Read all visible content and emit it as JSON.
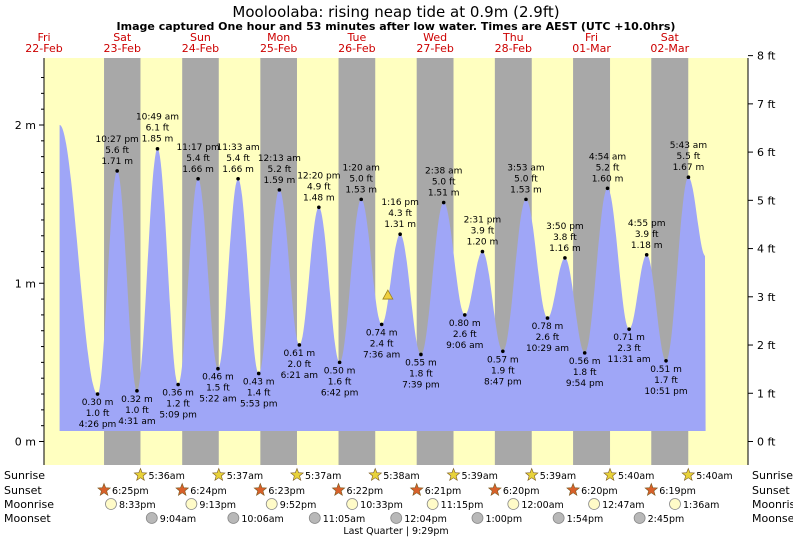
{
  "chart_data": {
    "type": "area",
    "title": "Mooloolaba: rising  neap tide at 0.9m (2.9ft)",
    "subtitle": "Image captured One hour and 53 minutes after low water. Times are AEST (UTC +10.0hrs)",
    "days": [
      {
        "dow": "Fri",
        "date": "22-Feb"
      },
      {
        "dow": "Sat",
        "date": "23-Feb"
      },
      {
        "dow": "Sun",
        "date": "24-Feb"
      },
      {
        "dow": "Mon",
        "date": "25-Feb"
      },
      {
        "dow": "Tue",
        "date": "26-Feb"
      },
      {
        "dow": "Wed",
        "date": "27-Feb"
      },
      {
        "dow": "Thu",
        "date": "28-Feb"
      },
      {
        "dow": "Fri",
        "date": "01-Mar"
      },
      {
        "dow": "Sat",
        "date": "02-Mar"
      }
    ],
    "y_left_ticks": [
      "0 m",
      "1 m",
      "2 m"
    ],
    "y_right_ticks": [
      "0 ft",
      "1 ft",
      "2 ft",
      "3 ft",
      "4 ft",
      "5 ft",
      "6 ft",
      "7 ft",
      "8 ft"
    ],
    "ylim_m": [
      0,
      2.44
    ],
    "x_start": "22-Feb 00:00",
    "x_range_hours": [
      0,
      216
    ],
    "daylight": [
      {
        "rise_h": -18.4,
        "set_h": 18.42
      },
      {
        "rise_h": 29.6,
        "set_h": 42.4
      },
      {
        "rise_h": 53.62,
        "set_h": 66.38
      },
      {
        "rise_h": 77.62,
        "set_h": 90.37
      },
      {
        "rise_h": 101.63,
        "set_h": 114.35
      },
      {
        "rise_h": 125.65,
        "set_h": 138.33
      },
      {
        "rise_h": 149.65,
        "set_h": 162.33
      },
      {
        "rise_h": 173.67,
        "set_h": 186.32
      },
      {
        "rise_h": 197.67,
        "set_h": 234
      }
    ],
    "tides": [
      {
        "h": 4.8,
        "m": 2.0
      },
      {
        "h": 16.43,
        "m": 0.3,
        "type": "low",
        "time": "4:26 pm",
        "ft": "1.0 ft",
        "mt": "0.30 m"
      },
      {
        "h": 22.45,
        "m": 1.71,
        "type": "high",
        "time": "10:27 pm",
        "ft": "5.6 ft",
        "mt": "1.71 m"
      },
      {
        "h": 28.52,
        "m": 0.32,
        "type": "low",
        "time": "4:31 am",
        "ft": "1.0 ft",
        "mt": "0.32 m"
      },
      {
        "h": 34.82,
        "m": 1.85,
        "type": "high",
        "time": "10:49 am",
        "ft": "6.1 ft",
        "mt": "1.85 m"
      },
      {
        "h": 41.15,
        "m": 0.36,
        "type": "low",
        "time": "5:09 pm",
        "ft": "1.2 ft",
        "mt": "0.36 m"
      },
      {
        "h": 47.28,
        "m": 1.66,
        "type": "high",
        "time": "11:17 pm",
        "ft": "5.4 ft",
        "mt": "1.66 m"
      },
      {
        "h": 53.37,
        "m": 0.46,
        "type": "low",
        "time": "5:22 am",
        "ft": "1.5 ft",
        "mt": "0.46 m"
      },
      {
        "h": 59.55,
        "m": 1.66,
        "type": "high",
        "time": "11:33 am",
        "ft": "5.4 ft",
        "mt": "1.66 m"
      },
      {
        "h": 65.88,
        "m": 0.43,
        "type": "low",
        "time": "5:53 pm",
        "ft": "1.4 ft",
        "mt": "0.43 m"
      },
      {
        "h": 72.22,
        "m": 1.59,
        "type": "high",
        "time": "12:13 am",
        "ft": "5.2 ft",
        "mt": "1.59 m"
      },
      {
        "h": 78.35,
        "m": 0.61,
        "type": "low",
        "time": "6:21 am",
        "ft": "2.0 ft",
        "mt": "0.61 m"
      },
      {
        "h": 84.33,
        "m": 1.48,
        "type": "high",
        "time": "12:20 pm",
        "ft": "4.9 ft",
        "mt": "1.48 m"
      },
      {
        "h": 90.7,
        "m": 0.5,
        "type": "low",
        "time": "6:42 pm",
        "ft": "1.6 ft",
        "mt": "0.50 m"
      },
      {
        "h": 97.33,
        "m": 1.53,
        "type": "high",
        "time": "1:20 am",
        "ft": "5.0 ft",
        "mt": "1.53 m"
      },
      {
        "h": 103.6,
        "m": 0.74,
        "type": "low",
        "time": "7:36 am",
        "ft": "2.4 ft",
        "mt": "0.74 m"
      },
      {
        "h": 109.27,
        "m": 1.31,
        "type": "high",
        "time": "1:16 pm",
        "ft": "4.3 ft",
        "mt": "1.31 m"
      },
      {
        "h": 115.65,
        "m": 0.55,
        "type": "low",
        "time": "7:39 pm",
        "ft": "1.8 ft",
        "mt": "0.55 m"
      },
      {
        "h": 122.63,
        "m": 1.51,
        "type": "high",
        "time": "2:38 am",
        "ft": "5.0 ft",
        "mt": "1.51 m"
      },
      {
        "h": 129.1,
        "m": 0.8,
        "type": "low",
        "time": "9:06 am",
        "ft": "2.6 ft",
        "mt": "0.80 m"
      },
      {
        "h": 134.52,
        "m": 1.2,
        "type": "high",
        "time": "2:31 pm",
        "ft": "3.9 ft",
        "mt": "1.20 m"
      },
      {
        "h": 140.78,
        "m": 0.57,
        "type": "low",
        "time": "8:47 pm",
        "ft": "1.9 ft",
        "mt": "0.57 m"
      },
      {
        "h": 147.88,
        "m": 1.53,
        "type": "high",
        "time": "3:53 am",
        "ft": "5.0 ft",
        "mt": "1.53 m"
      },
      {
        "h": 154.48,
        "m": 0.78,
        "type": "low",
        "time": "10:29 am",
        "ft": "2.6 ft",
        "mt": "0.78 m"
      },
      {
        "h": 159.83,
        "m": 1.16,
        "type": "high",
        "time": "3:50 pm",
        "ft": "3.8 ft",
        "mt": "1.16 m"
      },
      {
        "h": 165.9,
        "m": 0.56,
        "type": "low",
        "time": "9:54 pm",
        "ft": "1.8 ft",
        "mt": "0.56 m"
      },
      {
        "h": 172.9,
        "m": 1.6,
        "type": "high",
        "time": "4:54 am",
        "ft": "5.2 ft",
        "mt": "1.60 m"
      },
      {
        "h": 179.52,
        "m": 0.71,
        "type": "low",
        "time": "11:31 am",
        "ft": "2.3 ft",
        "mt": "0.71 m"
      },
      {
        "h": 184.92,
        "m": 1.18,
        "type": "high",
        "time": "4:55 pm",
        "ft": "3.9 ft",
        "mt": "1.18 m"
      },
      {
        "h": 190.85,
        "m": 0.51,
        "type": "low",
        "time": "10:51 pm",
        "ft": "1.7 ft",
        "mt": "0.51 m"
      },
      {
        "h": 197.72,
        "m": 1.67,
        "type": "high",
        "time": "5:43 am",
        "ft": "5.5 ft",
        "mt": "1.67 m"
      },
      {
        "h": 203.0,
        "m": 1.17
      }
    ],
    "current": {
      "h": 105.5,
      "m": 0.9
    },
    "rows": [
      {
        "label": "Sunrise",
        "kind": "sunrise",
        "events": [
          {
            "h": 29.6,
            "text": "5:36am"
          },
          {
            "h": 53.62,
            "text": "5:37am"
          },
          {
            "h": 77.62,
            "text": "5:37am"
          },
          {
            "h": 101.63,
            "text": "5:38am"
          },
          {
            "h": 125.65,
            "text": "5:39am"
          },
          {
            "h": 149.65,
            "text": "5:39am"
          },
          {
            "h": 173.67,
            "text": "5:40am"
          },
          {
            "h": 197.67,
            "text": "5:40am"
          }
        ]
      },
      {
        "label": "Sunset",
        "kind": "sunset",
        "events": [
          {
            "h": 18.42,
            "text": "6:25pm"
          },
          {
            "h": 42.4,
            "text": "6:24pm"
          },
          {
            "h": 66.38,
            "text": "6:23pm"
          },
          {
            "h": 90.37,
            "text": "6:22pm"
          },
          {
            "h": 114.35,
            "text": "6:21pm"
          },
          {
            "h": 138.33,
            "text": "6:20pm"
          },
          {
            "h": 162.33,
            "text": "6:20pm"
          },
          {
            "h": 186.32,
            "text": "6:19pm"
          }
        ]
      },
      {
        "label": "Moonrise",
        "kind": "moonrise",
        "events": [
          {
            "h": 20.55,
            "text": "8:33pm"
          },
          {
            "h": 45.22,
            "text": "9:13pm"
          },
          {
            "h": 69.87,
            "text": "9:52pm"
          },
          {
            "h": 94.55,
            "text": "10:33pm"
          },
          {
            "h": 119.25,
            "text": "11:15pm"
          },
          {
            "h": 144.0,
            "text": "12:00am"
          },
          {
            "h": 168.78,
            "text": "12:47am"
          },
          {
            "h": 193.6,
            "text": "1:36am"
          }
        ]
      },
      {
        "label": "Moonset",
        "kind": "moonset",
        "events": [
          {
            "h": 33.07,
            "text": "9:04am"
          },
          {
            "h": 58.1,
            "text": "10:06am"
          },
          {
            "h": 83.08,
            "text": "11:05am"
          },
          {
            "h": 108.07,
            "text": "12:04pm"
          },
          {
            "h": 133.0,
            "text": "1:00pm"
          },
          {
            "h": 157.9,
            "text": "1:54pm"
          },
          {
            "h": 182.75,
            "text": "2:45pm"
          }
        ]
      }
    ],
    "moon_phase": "Last Quarter | 9:29pm",
    "colors": {
      "day": "#ffffc0",
      "night": "#a8a8a8",
      "water": "#9fa6f7",
      "day_label": "#cc0000",
      "sunrise": "#e8d23a",
      "sunset": "#d8602a",
      "moonrise": "#fffbc8",
      "moonset": "#b8b8b8"
    }
  }
}
